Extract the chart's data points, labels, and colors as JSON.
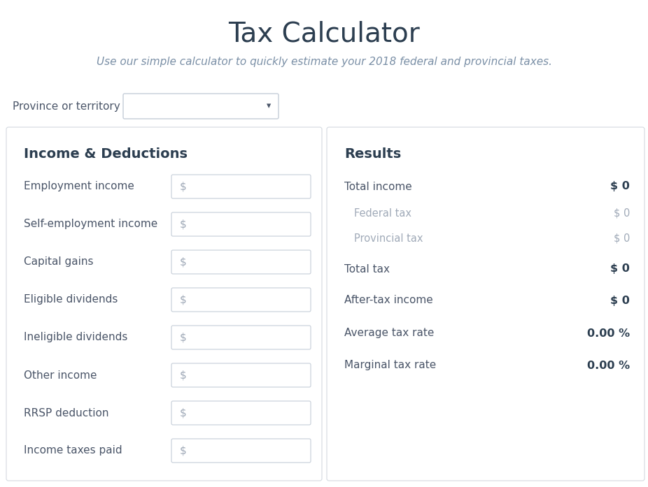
{
  "title": "Tax Calculator",
  "subtitle": "Use our simple calculator to quickly estimate your 2018 federal and provincial taxes.",
  "province_label": "Province or territory",
  "bg_color": "#ffffff",
  "panel_color": "#ffffff",
  "border_color": "#d4d9e0",
  "title_color": "#2c3e50",
  "subtitle_color": "#7a8fa6",
  "section_header_color": "#2c3e50",
  "label_color_normal": "#4a5568",
  "result_label_color": "#4a5568",
  "result_label_muted_color": "#a0aab8",
  "result_value_bold_color": "#2c3e50",
  "result_value_muted_color": "#a0aab8",
  "input_border_color": "#c5cdd8",
  "input_bg": "#ffffff",
  "dollar_color": "#a0aab8",
  "dropdown_border_color": "#c5cdd8",
  "income_deductions_labels": [
    "Employment income",
    "Self-employment income",
    "Capital gains",
    "Eligible dividends",
    "Ineligible dividends",
    "Other income",
    "RRSP deduction",
    "Income taxes paid"
  ],
  "income_label_colors": [
    "#4a5568",
    "#4a5568",
    "#4a5568",
    "#4a5568",
    "#4a5568",
    "#4a5568",
    "#4a5568",
    "#4a5568"
  ],
  "results_labels": [
    "Total income",
    "Federal tax",
    "Provincial tax",
    "Total tax",
    "After-tax income",
    "Average tax rate",
    "Marginal tax rate"
  ],
  "results_values": [
    "$ 0",
    "$ 0",
    "$ 0",
    "$ 0",
    "$ 0",
    "0.00 %",
    "0.00 %"
  ],
  "results_bold": [
    true,
    false,
    false,
    true,
    true,
    true,
    true
  ],
  "results_muted_label": [
    false,
    true,
    true,
    false,
    false,
    false,
    false
  ],
  "fig_width": 9.26,
  "fig_height": 6.97,
  "dpi": 100
}
